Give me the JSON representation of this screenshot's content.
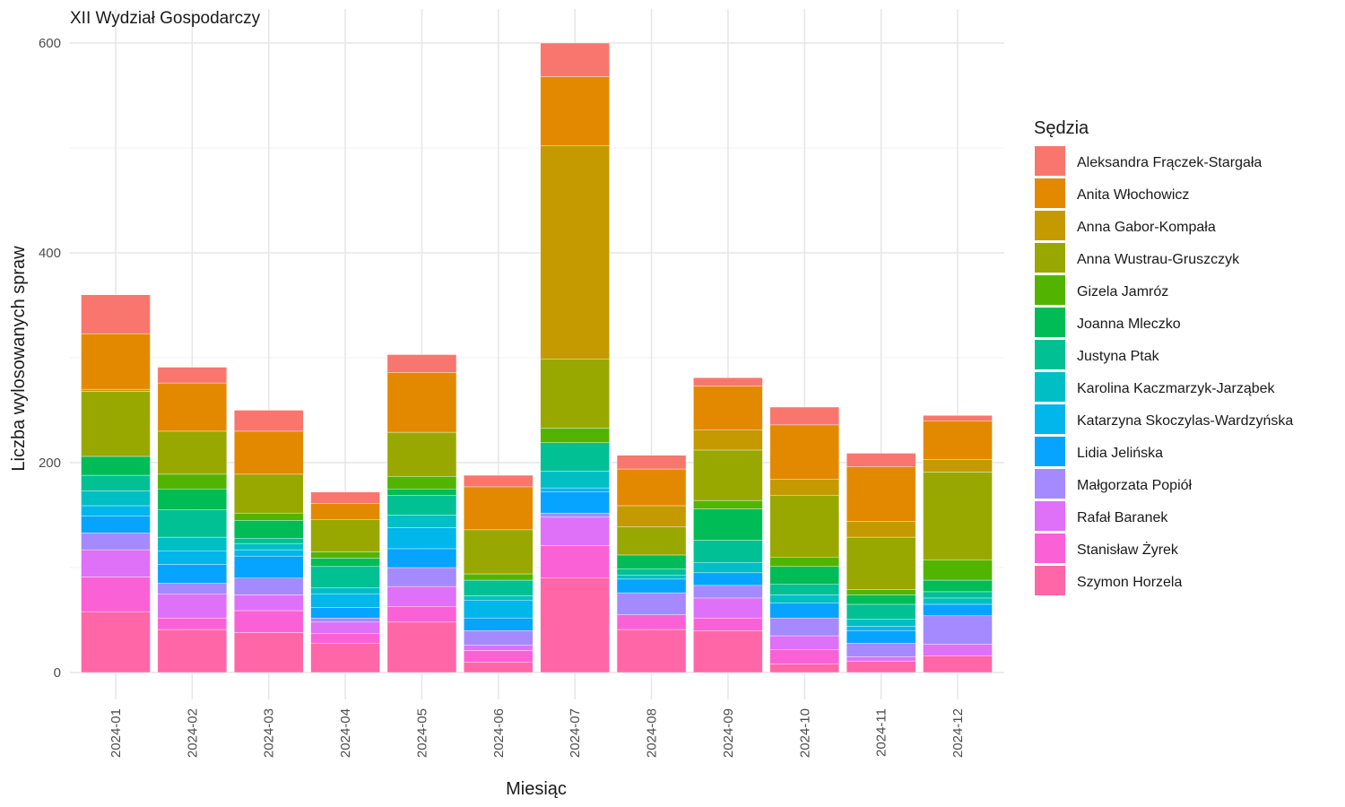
{
  "chart_data": {
    "type": "bar",
    "stacked": true,
    "title": "XII Wydział Gospodarczy",
    "xlabel": "Miesiąc",
    "ylabel": "Liczba wylosowanych spraw",
    "ylim": [
      0,
      620
    ],
    "yticks": [
      0,
      200,
      400,
      600
    ],
    "grid": true,
    "legend_title": "Sędzia",
    "legend_position": "right",
    "categories": [
      "2024-01",
      "2024-02",
      "2024-03",
      "2024-04",
      "2024-05",
      "2024-06",
      "2024-07",
      "2024-08",
      "2024-09",
      "2024-10",
      "2024-11",
      "2024-12"
    ],
    "series": [
      {
        "name": "Aleksandra Frączek-Stargała",
        "color": "#F8766D",
        "values": [
          37,
          15,
          20,
          11,
          17,
          11,
          32,
          13,
          8,
          17,
          13,
          5
        ]
      },
      {
        "name": "Anita Włochowicz",
        "color": "#E38900",
        "values": [
          53,
          46,
          41,
          15,
          57,
          41,
          66,
          35,
          42,
          52,
          52,
          37
        ]
      },
      {
        "name": "Anna Gabor-Kompała",
        "color": "#C49A00",
        "values": [
          2,
          0,
          0,
          0,
          0,
          0,
          203,
          20,
          19,
          15,
          15,
          12
        ]
      },
      {
        "name": "Anna Wustrau-Gruszczyk",
        "color": "#99A800",
        "values": [
          62,
          41,
          37,
          31,
          42,
          42,
          66,
          27,
          48,
          59,
          50,
          84
        ]
      },
      {
        "name": "Gizela Jamróz",
        "color": "#53B400",
        "values": [
          0,
          14,
          7,
          6,
          12,
          6,
          14,
          0,
          8,
          9,
          5,
          19
        ]
      },
      {
        "name": "Joanna Mleczko",
        "color": "#00BC56",
        "values": [
          18,
          20,
          17,
          8,
          6,
          0,
          0,
          13,
          30,
          17,
          9,
          11
        ]
      },
      {
        "name": "Justyna Ptak",
        "color": "#00C094",
        "values": [
          15,
          26,
          5,
          20,
          19,
          15,
          27,
          6,
          21,
          10,
          14,
          6
        ]
      },
      {
        "name": "Karolina Kaczmarzyk-Jarząbek",
        "color": "#00BFC4",
        "values": [
          14,
          13,
          6,
          6,
          12,
          4,
          16,
          4,
          10,
          8,
          7,
          6
        ]
      },
      {
        "name": "Katarzyna Skoczylas-Wardzyńska",
        "color": "#00B6EB",
        "values": [
          10,
          13,
          6,
          13,
          20,
          17,
          4,
          0,
          0,
          0,
          4,
          0
        ]
      },
      {
        "name": "Lidia Jelińska",
        "color": "#06A4FF",
        "values": [
          16,
          18,
          21,
          10,
          18,
          12,
          20,
          13,
          12,
          14,
          12,
          11
        ]
      },
      {
        "name": "Małgorzata Popiół",
        "color": "#A58AFF",
        "values": [
          16,
          10,
          16,
          4,
          18,
          14,
          4,
          21,
          12,
          17,
          13,
          27
        ]
      },
      {
        "name": "Rafał Baranek",
        "color": "#DF70F8",
        "values": [
          26,
          23,
          15,
          11,
          19,
          5,
          27,
          0,
          19,
          13,
          4,
          11
        ]
      },
      {
        "name": "Stanisław Żyrek",
        "color": "#FB61D7",
        "values": [
          33,
          11,
          21,
          9,
          15,
          11,
          31,
          14,
          12,
          14,
          0,
          0
        ]
      },
      {
        "name": "Szymon Horzela",
        "color": "#FF66A8",
        "values": [
          58,
          41,
          38,
          28,
          48,
          10,
          90,
          41,
          40,
          8,
          11,
          16
        ]
      }
    ]
  }
}
